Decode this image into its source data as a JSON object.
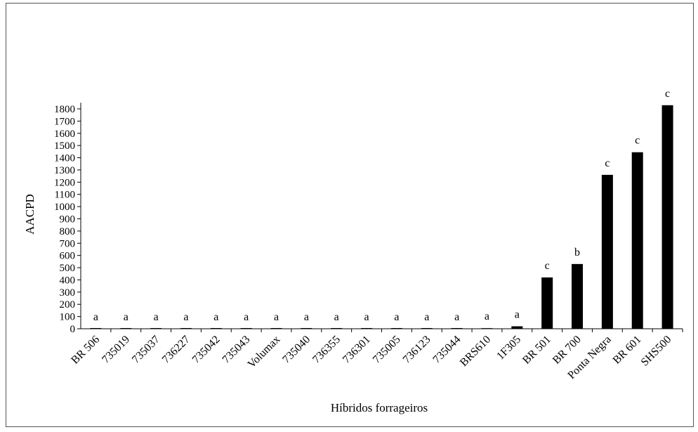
{
  "chart_data": {
    "type": "bar",
    "xlabel": "Híbridos forrageiros",
    "ylabel": "AACPD",
    "ylim": [
      0,
      1850
    ],
    "yticks": [
      0,
      100,
      200,
      300,
      400,
      500,
      600,
      700,
      800,
      900,
      1000,
      1100,
      1200,
      1300,
      1400,
      1500,
      1600,
      1700,
      1800
    ],
    "grid": false,
    "legend": "none",
    "bar_color": "#000000",
    "categories": [
      "BR 506",
      "735019",
      "735037",
      "736227",
      "735042",
      "735043",
      "Volumax",
      "735040",
      "736355",
      "736301",
      "735005",
      "736123",
      "735044",
      "BRS610",
      "1F305",
      "BR 501",
      "BR 700",
      "Ponta Negra",
      "BR 601",
      "SHS500"
    ],
    "values": [
      0,
      0,
      0,
      0,
      0,
      0,
      0,
      0,
      0,
      0,
      0,
      0,
      0,
      5,
      20,
      420,
      530,
      1260,
      1445,
      1830
    ],
    "letters": [
      "a",
      "a",
      "a",
      "a",
      "a",
      "a",
      "a",
      "a",
      "a",
      "a",
      "a",
      "a",
      "a",
      "a",
      "a",
      "c",
      "b",
      "c",
      "c",
      "c"
    ]
  }
}
